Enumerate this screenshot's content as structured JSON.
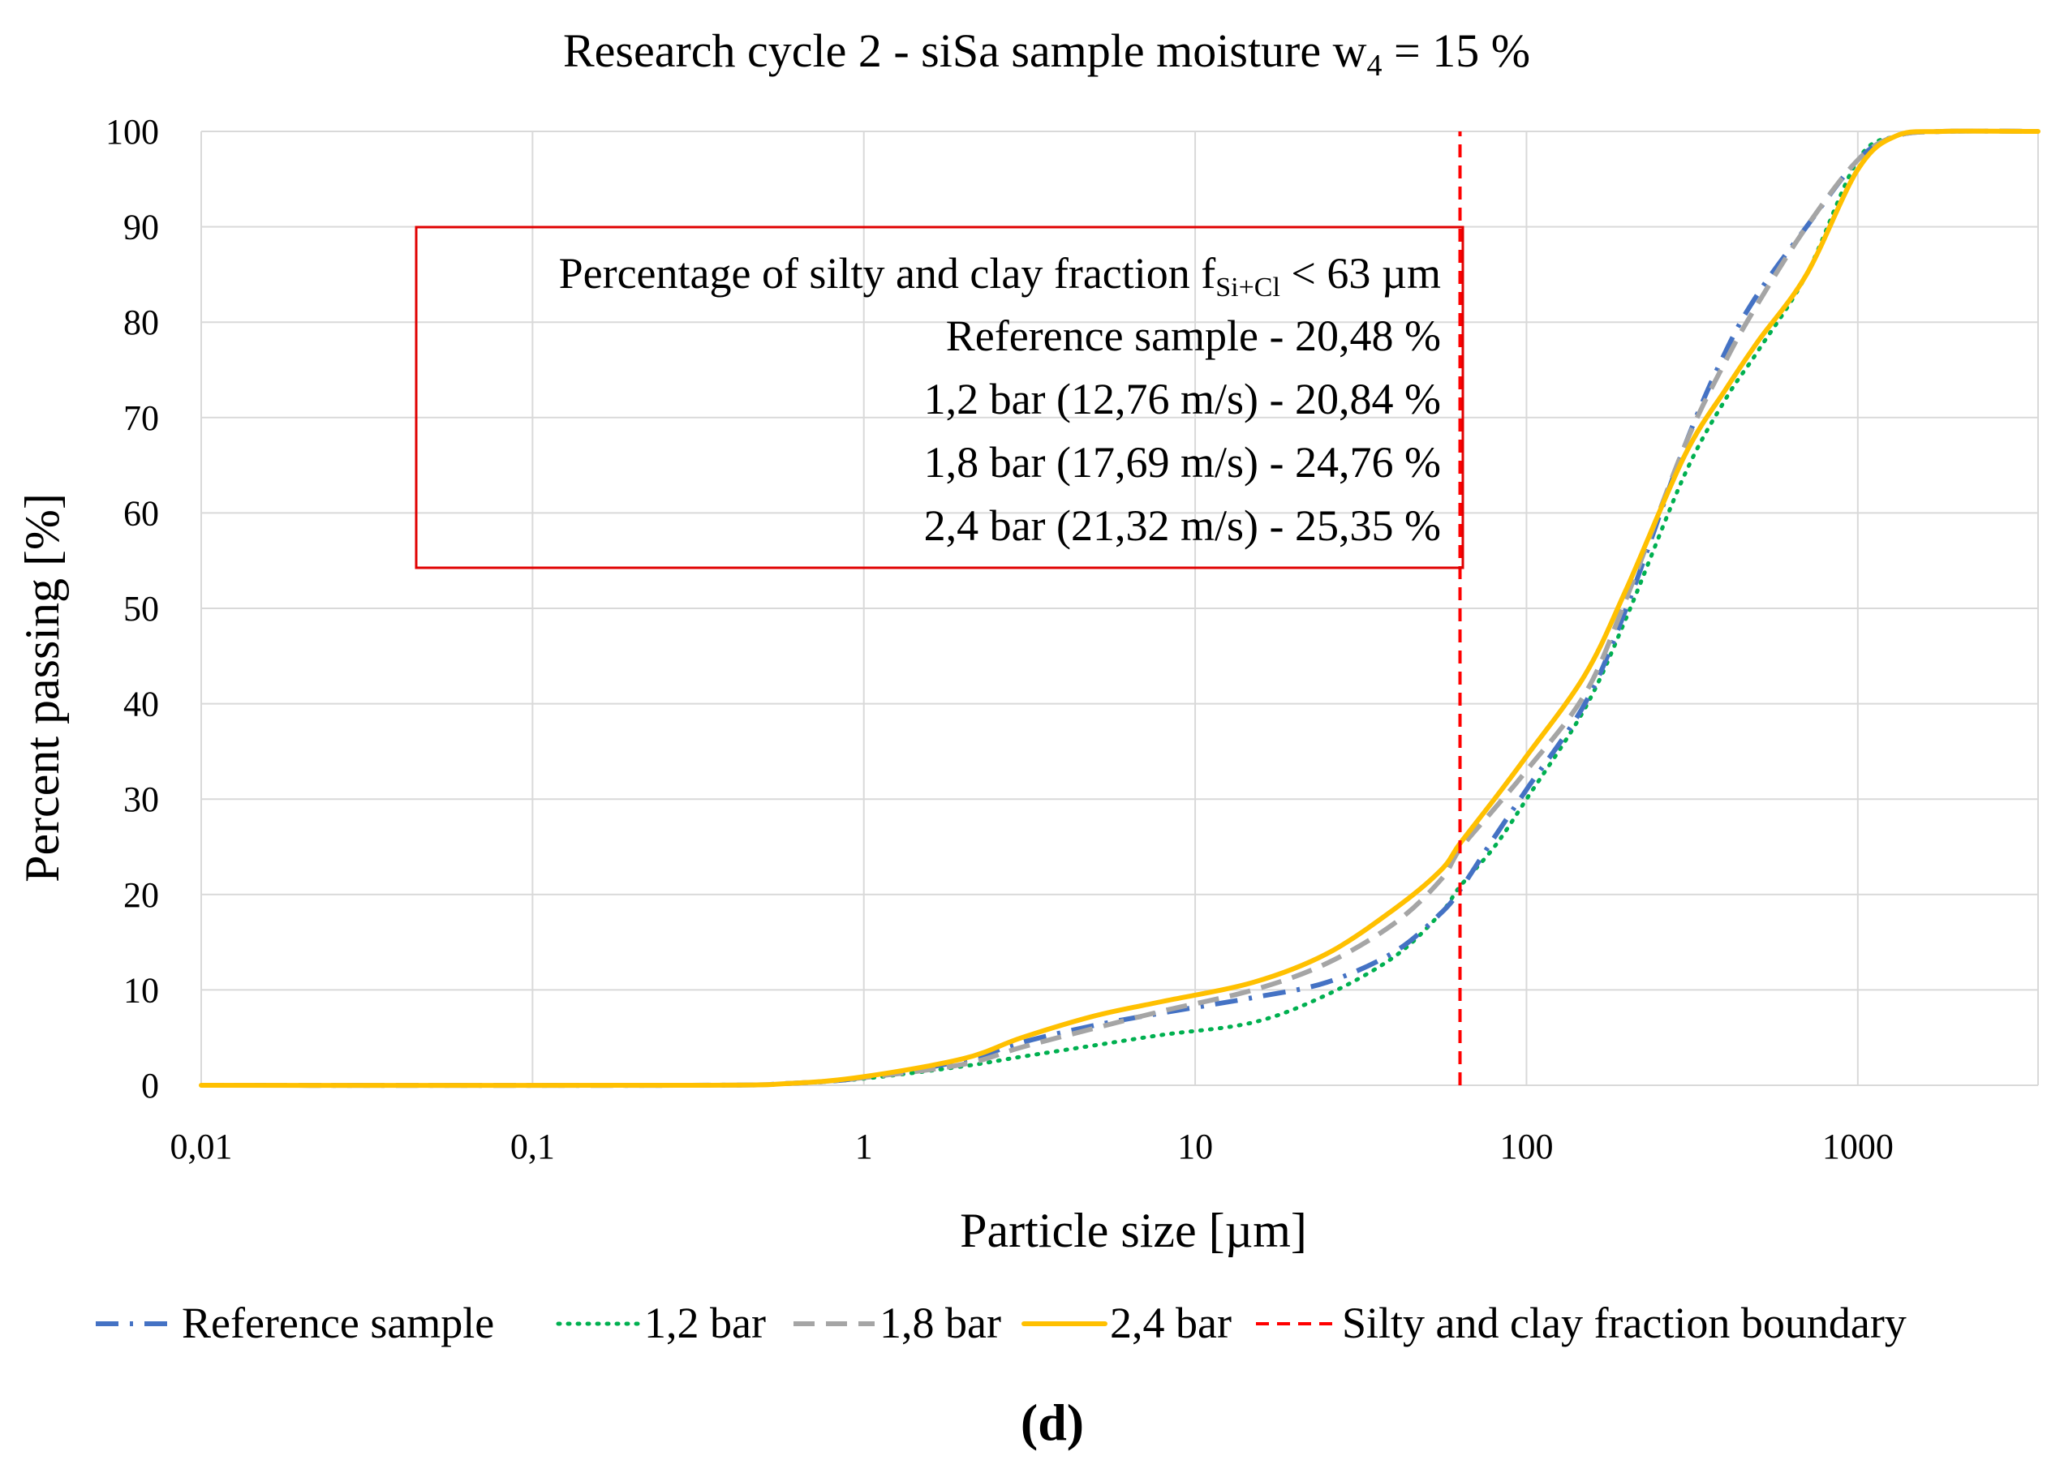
{
  "chart_data": {
    "type": "line",
    "title_main": "Research cycle 2 - siSa sample moisture w",
    "title_sub": "4",
    "title_tail": " = 15 %",
    "xlabel": "Particle size [µm]",
    "ylabel": "Percent passing [%]",
    "x_scale": "log",
    "xlim": [
      0.01,
      3500
    ],
    "ylim": [
      0,
      100
    ],
    "x_ticks": [
      0.01,
      0.1,
      1,
      10,
      100,
      1000
    ],
    "x_tick_labels": [
      "0,01",
      "0,1",
      "1",
      "10",
      "100",
      "1000"
    ],
    "y_ticks": [
      0,
      10,
      20,
      30,
      40,
      50,
      60,
      70,
      80,
      90,
      100
    ],
    "y_tick_labels": [
      "0",
      "10",
      "20",
      "30",
      "40",
      "50",
      "60",
      "70",
      "80",
      "90",
      "100"
    ],
    "grid": true,
    "series": [
      {
        "name": "Reference sample",
        "color": "#4472C4",
        "dash": "dash-dot",
        "points": [
          [
            0.01,
            0
          ],
          [
            0.3,
            0
          ],
          [
            0.6,
            0.2
          ],
          [
            1,
            0.8
          ],
          [
            2,
            2.6
          ],
          [
            3,
            4.5
          ],
          [
            5,
            6.3
          ],
          [
            8,
            7.6
          ],
          [
            15,
            9.2
          ],
          [
            25,
            10.8
          ],
          [
            40,
            14.0
          ],
          [
            55,
            18.0
          ],
          [
            63,
            20.48
          ],
          [
            80,
            26
          ],
          [
            100,
            31
          ],
          [
            150,
            40
          ],
          [
            200,
            50
          ],
          [
            300,
            67
          ],
          [
            400,
            77
          ],
          [
            500,
            83
          ],
          [
            700,
            90
          ],
          [
            1000,
            97
          ],
          [
            1300,
            99.5
          ],
          [
            1800,
            100
          ],
          [
            3500,
            100
          ]
        ]
      },
      {
        "name": "1,2 bar",
        "color": "#00B050",
        "dash": "dotted",
        "points": [
          [
            0.01,
            0
          ],
          [
            0.3,
            0
          ],
          [
            0.6,
            0.2
          ],
          [
            1,
            0.7
          ],
          [
            2,
            2.0
          ],
          [
            3,
            3.0
          ],
          [
            5,
            4.2
          ],
          [
            8,
            5.3
          ],
          [
            15,
            6.6
          ],
          [
            25,
            9.5
          ],
          [
            40,
            13.5
          ],
          [
            55,
            18.0
          ],
          [
            63,
            20.84
          ],
          [
            80,
            25
          ],
          [
            100,
            30
          ],
          [
            150,
            39.5
          ],
          [
            200,
            49.0
          ],
          [
            300,
            64
          ],
          [
            400,
            72
          ],
          [
            500,
            77
          ],
          [
            700,
            85
          ],
          [
            1000,
            97
          ],
          [
            1300,
            99.5
          ],
          [
            1800,
            100
          ],
          [
            3500,
            100
          ]
        ]
      },
      {
        "name": "1,8 bar",
        "color": "#A5A5A5",
        "dash": "dashed",
        "points": [
          [
            0.01,
            0
          ],
          [
            0.3,
            0
          ],
          [
            0.6,
            0.2
          ],
          [
            1,
            0.8
          ],
          [
            2,
            2.2
          ],
          [
            3,
            4.0
          ],
          [
            5,
            6.0
          ],
          [
            8,
            7.8
          ],
          [
            15,
            10.0
          ],
          [
            25,
            12.8
          ],
          [
            40,
            17.0
          ],
          [
            55,
            21.5
          ],
          [
            63,
            24.76
          ],
          [
            80,
            29
          ],
          [
            100,
            33
          ],
          [
            150,
            41
          ],
          [
            200,
            51
          ],
          [
            300,
            67
          ],
          [
            400,
            76
          ],
          [
            500,
            82
          ],
          [
            700,
            90
          ],
          [
            1000,
            97
          ],
          [
            1300,
            99.5
          ],
          [
            1800,
            100
          ],
          [
            3500,
            100
          ]
        ]
      },
      {
        "name": "2,4 bar",
        "color": "#FFC000",
        "dash": "solid",
        "points": [
          [
            0.01,
            0
          ],
          [
            0.3,
            0
          ],
          [
            0.6,
            0.2
          ],
          [
            1,
            0.9
          ],
          [
            2,
            2.8
          ],
          [
            3,
            5.0
          ],
          [
            5,
            7.3
          ],
          [
            8,
            8.8
          ],
          [
            15,
            10.8
          ],
          [
            25,
            13.8
          ],
          [
            40,
            18.5
          ],
          [
            55,
            22.5
          ],
          [
            63,
            25.35
          ],
          [
            80,
            30
          ],
          [
            100,
            34.5
          ],
          [
            150,
            43
          ],
          [
            200,
            52
          ],
          [
            300,
            66
          ],
          [
            400,
            73
          ],
          [
            500,
            78
          ],
          [
            700,
            85
          ],
          [
            1000,
            96
          ],
          [
            1300,
            99.5
          ],
          [
            1800,
            100
          ],
          [
            3500,
            100
          ]
        ]
      },
      {
        "name": "Silty and clay fraction boundary",
        "color": "#FF0000",
        "dash": "dashed",
        "points": [
          [
            63,
            0
          ],
          [
            63,
            100
          ]
        ]
      }
    ],
    "annotation": {
      "line1_main": "Percentage of silty and clay fraction f",
      "line1_sub": "Si+Cl",
      "line1_tail": " < 63 µm",
      "lines": [
        "Reference sample - 20,48 %",
        "1,2 bar (12,76 m/s) - 20,84 %",
        "1,8 bar (17,69 m/s) - 24,76 %",
        "2,4 bar (21,32 m/s) - 25,35 %"
      ],
      "box_color": "#E00000"
    },
    "legend_position": "bottom-center",
    "panel_label": "(d)"
  }
}
